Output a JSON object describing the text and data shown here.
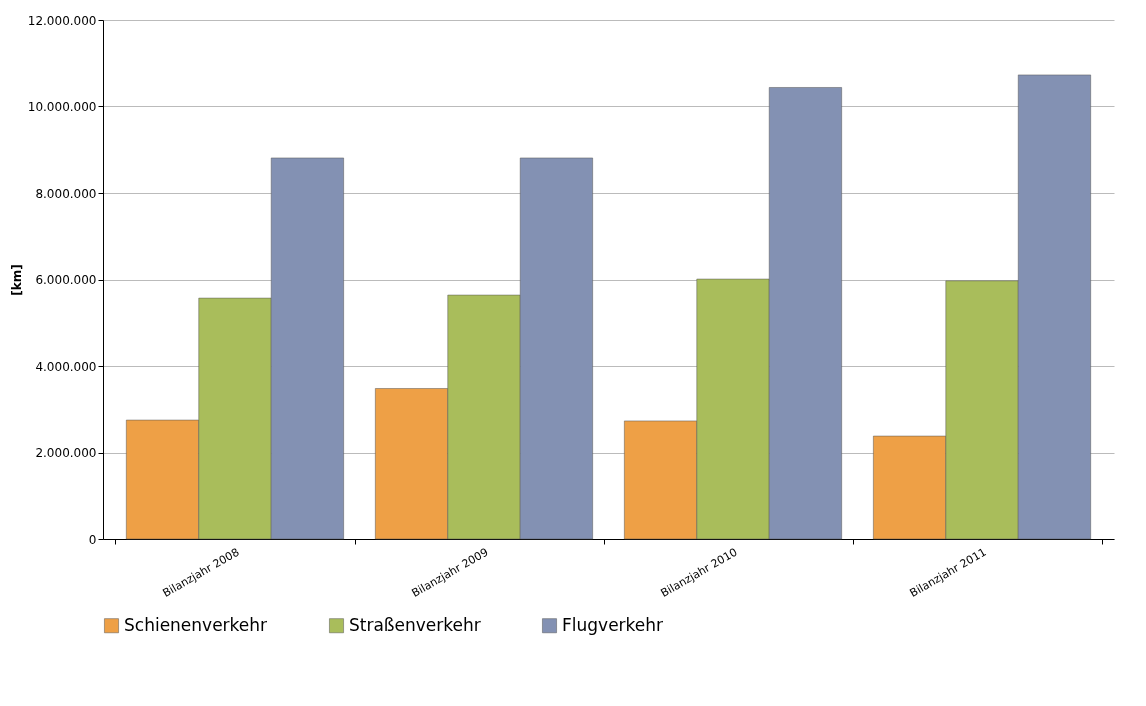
{
  "chart_data": {
    "type": "bar",
    "ylabel": "[km]",
    "categories": [
      "Bilanzjahr 2008",
      "Bilanzjahr 2009",
      "Bilanzjahr 2010",
      "Bilanzjahr 2011"
    ],
    "series": [
      {
        "name": "Schienenverkehr",
        "color": "#eea046",
        "values": [
          2750000,
          3480000,
          2730000,
          2380000
        ]
      },
      {
        "name": "Straßenverkehr",
        "color": "#a9bd5b",
        "values": [
          5570000,
          5640000,
          6010000,
          5970000
        ]
      },
      {
        "name": "Flugverkehr",
        "color": "#8391b3",
        "values": [
          8810000,
          8810000,
          10440000,
          10730000
        ]
      }
    ],
    "ylim": [
      0,
      12000000
    ],
    "yticks": [
      {
        "value": 0,
        "label": "0"
      },
      {
        "value": 2000000,
        "label": "2.000.000"
      },
      {
        "value": 4000000,
        "label": "4.000.000"
      },
      {
        "value": 6000000,
        "label": "6.000.000"
      },
      {
        "value": 8000000,
        "label": "8.000.000"
      },
      {
        "value": 10000000,
        "label": "10.000.000"
      },
      {
        "value": 12000000,
        "label": "12.000.000"
      }
    ],
    "grid": "y",
    "legend": "bottom"
  }
}
